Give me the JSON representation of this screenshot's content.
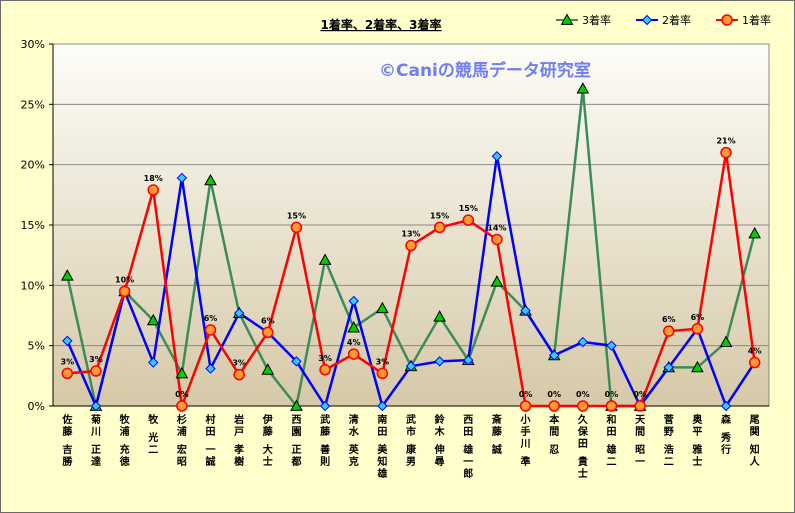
{
  "chart_data": {
    "type": "line",
    "title": "1着率、2着率、3着率",
    "watermark": "©Caniの競馬データ研究室",
    "ylim": [
      0,
      30
    ],
    "yticks": [
      "0%",
      "5%",
      "10%",
      "15%",
      "20%",
      "25%",
      "30%"
    ],
    "categories": [
      "佐藤 吉勝",
      "菊川 正達",
      "牧浦 充徳",
      "牧 光二",
      "杉浦 宏昭",
      "村田 一誠",
      "岩戸 孝樹",
      "伊藤 大士",
      "西園 正都",
      "武藤 善則",
      "清水 英克",
      "南田 美知雄",
      "武市 康男",
      "鈴木 伸尋",
      "西田 雄一郎",
      "斎藤 誠",
      "小手川 準",
      "本間 忍",
      "久保田 貴士",
      "和田 雄二",
      "天間 昭一",
      "菅野 浩二",
      "奥平 雅士",
      "森 秀行",
      "尾関 知人"
    ],
    "legend_position": "top-right",
    "series": [
      {
        "name": "3着率",
        "color": "#3c8c5a",
        "marker": "triangle",
        "marker_fill": "#00cc00",
        "values": [
          10.8,
          0,
          9.5,
          7.1,
          2.7,
          18.7,
          7.7,
          3.0,
          0,
          12.1,
          6.5,
          8.1,
          3.3,
          7.4,
          3.8,
          10.3,
          7.9,
          4.2,
          26.3,
          0,
          0,
          3.2,
          3.2,
          5.3,
          14.3
        ]
      },
      {
        "name": "2着率",
        "color": "#0000ff",
        "marker": "diamond",
        "marker_fill": "#33ccff",
        "values": [
          5.4,
          0,
          9.5,
          3.6,
          18.9,
          3.1,
          7.7,
          6.1,
          3.7,
          0,
          8.7,
          0,
          3.3,
          3.7,
          3.8,
          20.7,
          7.9,
          4.2,
          5.3,
          5.0,
          0,
          3.2,
          6.4,
          0,
          3.6
        ]
      },
      {
        "name": "1着率",
        "color": "#ff0000",
        "marker": "circle",
        "marker_fill": "#ff9933",
        "values": [
          2.7,
          2.9,
          9.5,
          17.9,
          0,
          6.3,
          2.6,
          6.1,
          14.8,
          3.0,
          4.3,
          2.7,
          13.3,
          14.8,
          15.4,
          13.8,
          0,
          0,
          0,
          0,
          0,
          6.2,
          6.4,
          21.0,
          3.6
        ]
      }
    ],
    "data_labels": [
      "3%",
      "3%",
      "10%",
      "18%",
      "0%",
      "6%",
      "3%",
      "6%",
      "15%",
      "3%",
      "4%",
      "3%",
      "13%",
      "15%",
      "15%",
      "14%",
      "0%",
      "0%",
      "0%",
      "0%",
      "0%",
      "6%",
      "6%",
      "21%",
      "4%"
    ]
  }
}
